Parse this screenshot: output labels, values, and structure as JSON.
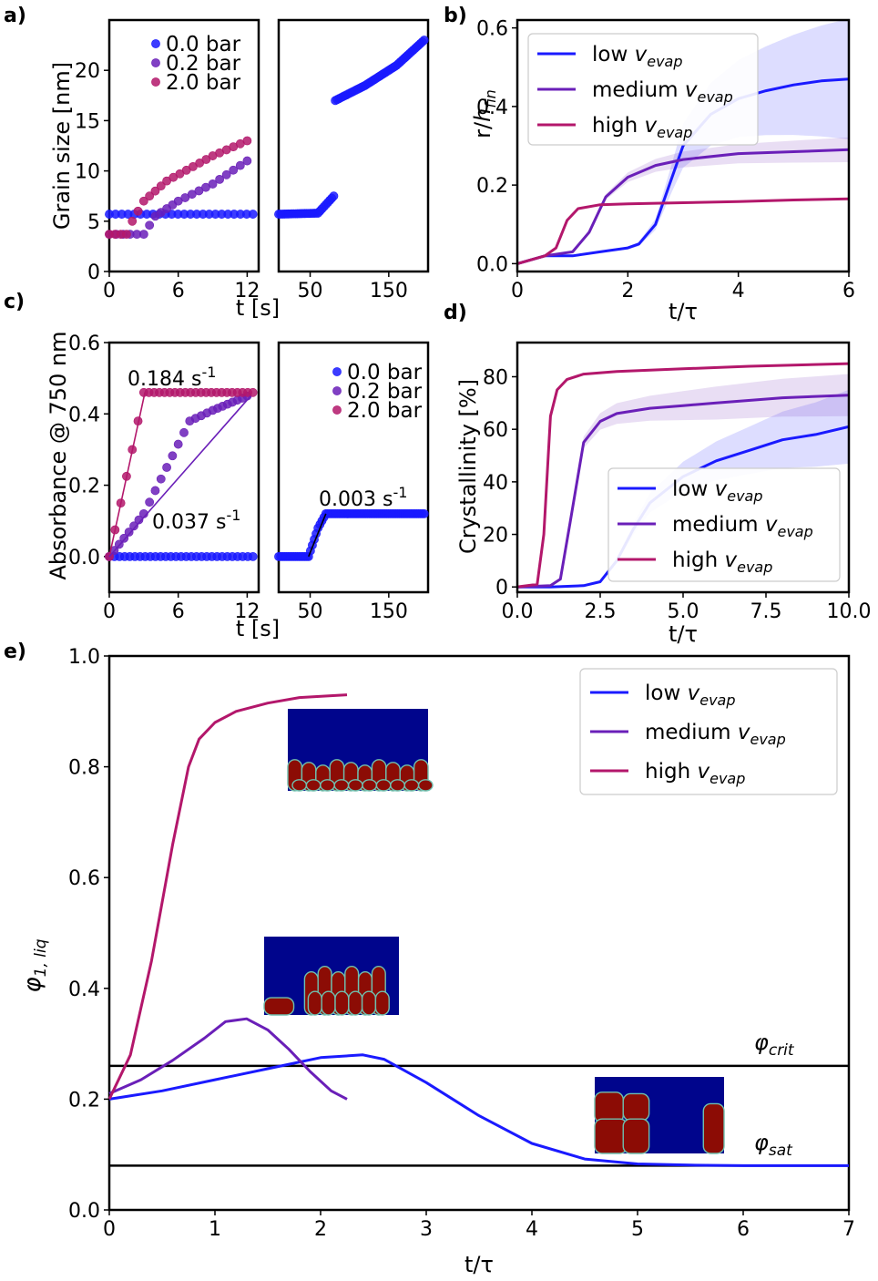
{
  "colors": {
    "low": "#1a1aff",
    "medium": "#6a1fb8",
    "high": "#b3176b",
    "black": "#000000"
  },
  "chart_data": [
    {
      "panel": "a)",
      "type": "scatter",
      "ylabel": "Grain size [nm]",
      "xlabel": "t [s]",
      "ylim": [
        0,
        25
      ],
      "yticks": [
        "0",
        "5",
        "10",
        "15",
        "20"
      ],
      "left_xlim": [
        0,
        13
      ],
      "left_xticks": [
        "0",
        "6",
        "12"
      ],
      "right_xlim": [
        10,
        200
      ],
      "right_xticks": [
        "50",
        "150"
      ],
      "legend": [
        "0.0 bar",
        "0.2 bar",
        "2.0 bar"
      ],
      "series": [
        {
          "name": "0.0 bar",
          "color": "#1a1aff",
          "left": [
            [
              0,
              5.7
            ],
            [
              12.5,
              5.7
            ]
          ],
          "right": [
            [
              10,
              5.7
            ],
            [
              60,
              5.8
            ],
            [
              80,
              7.5
            ],
            [
              82,
              17
            ],
            [
              120,
              18.5
            ],
            [
              160,
              20.5
            ],
            [
              195,
              23
            ]
          ]
        },
        {
          "name": "0.2 bar",
          "color": "#6a1fb8",
          "left": [
            [
              0,
              3.7
            ],
            [
              3,
              3.7
            ],
            [
              4,
              5.5
            ],
            [
              6,
              7
            ],
            [
              9,
              8.7
            ],
            [
              12,
              11
            ]
          ],
          "right": []
        },
        {
          "name": "2.0 bar",
          "color": "#b3176b",
          "left": [
            [
              0,
              3.7
            ],
            [
              1.5,
              3.7
            ],
            [
              2,
              5
            ],
            [
              3,
              7
            ],
            [
              5,
              9
            ],
            [
              9,
              11.5
            ],
            [
              12,
              13
            ]
          ],
          "right": []
        }
      ]
    },
    {
      "panel": "b)",
      "type": "line",
      "ylabel": "r/h_fin",
      "xlabel": "t/τ",
      "xlim": [
        0,
        6
      ],
      "ylim": [
        -0.02,
        0.62
      ],
      "xticks": [
        "0",
        "2",
        "4",
        "6"
      ],
      "yticks": [
        "0.0",
        "0.2",
        "0.4",
        "0.6"
      ],
      "legend": [
        "low",
        "medium",
        "high"
      ],
      "legend_sub": "evap",
      "series": [
        {
          "name": "low",
          "color": "#1a1aff",
          "x": [
            0,
            0.5,
            1,
            1.5,
            2,
            2.2,
            2.5,
            2.8,
            3,
            3.5,
            4,
            4.5,
            5,
            5.5,
            6
          ],
          "y": [
            0,
            0.02,
            0.02,
            0.03,
            0.04,
            0.05,
            0.1,
            0.22,
            0.3,
            0.38,
            0.42,
            0.44,
            0.455,
            0.465,
            0.47
          ]
        },
        {
          "name": "medium",
          "color": "#6a1fb8",
          "x": [
            0,
            0.5,
            1,
            1.3,
            1.6,
            2,
            2.5,
            3,
            4,
            5,
            6
          ],
          "y": [
            0,
            0.02,
            0.03,
            0.08,
            0.17,
            0.22,
            0.25,
            0.265,
            0.28,
            0.285,
            0.29
          ]
        },
        {
          "name": "high",
          "color": "#b3176b",
          "x": [
            0,
            0.5,
            0.7,
            0.9,
            1.1,
            1.5,
            2,
            3,
            4,
            5,
            6
          ],
          "y": [
            0,
            0.02,
            0.04,
            0.11,
            0.14,
            0.15,
            0.152,
            0.155,
            0.158,
            0.162,
            0.165
          ]
        }
      ]
    },
    {
      "panel": "c)",
      "type": "scatter",
      "ylabel": "Absorbance @ 750 nm",
      "xlabel": "t [s]",
      "ylim": [
        -0.1,
        0.6
      ],
      "yticks": [
        "0.0",
        "0.2",
        "0.4",
        "0.6"
      ],
      "left_xlim": [
        0,
        13
      ],
      "left_xticks": [
        "0",
        "6",
        "12"
      ],
      "right_xlim": [
        10,
        200
      ],
      "right_xticks": [
        "50",
        "150"
      ],
      "legend": [
        "0.0 bar",
        "0.2 bar",
        "2.0 bar"
      ],
      "annotations": [
        "0.184 s-1",
        "0.037 s-1",
        "0.003 s-1"
      ],
      "series": [
        {
          "name": "0.0 bar",
          "color": "#1a1aff",
          "left": [
            [
              0,
              0
            ],
            [
              12.5,
              0
            ]
          ],
          "right": [
            [
              10,
              0
            ],
            [
              48,
              0
            ],
            [
              60,
              0.08
            ],
            [
              70,
              0.12
            ],
            [
              195,
              0.12
            ]
          ]
        },
        {
          "name": "0.2 bar",
          "color": "#6a1fb8",
          "left": [
            [
              0,
              0
            ],
            [
              3,
              0.12
            ],
            [
              5,
              0.25
            ],
            [
              7,
              0.38
            ],
            [
              9,
              0.41
            ],
            [
              12,
              0.45
            ]
          ],
          "right": []
        },
        {
          "name": "2.0 bar",
          "color": "#b3176b",
          "left": [
            [
              0,
              0
            ],
            [
              1,
              0.15
            ],
            [
              2,
              0.3
            ],
            [
              3,
              0.46
            ],
            [
              12.5,
              0.46
            ]
          ],
          "right": []
        }
      ]
    },
    {
      "panel": "d)",
      "type": "line",
      "ylabel": "Crystallinity [%]",
      "xlabel": "t/τ",
      "xlim": [
        0,
        10
      ],
      "ylim": [
        -2,
        93
      ],
      "xticks": [
        "0.0",
        "2.5",
        "5.0",
        "7.5",
        "10.0"
      ],
      "yticks": [
        "0",
        "20",
        "40",
        "60",
        "80"
      ],
      "legend": [
        "low",
        "medium",
        "high"
      ],
      "legend_sub": "evap",
      "series": [
        {
          "name": "low",
          "color": "#1a1aff",
          "x": [
            0,
            1,
            2,
            2.5,
            3,
            3.5,
            4,
            5,
            6,
            7,
            8,
            9,
            10
          ],
          "y": [
            0,
            0,
            0.5,
            2,
            10,
            22,
            32,
            42,
            48,
            52,
            56,
            58,
            61
          ]
        },
        {
          "name": "medium",
          "color": "#6a1fb8",
          "x": [
            0,
            1,
            1.3,
            1.6,
            2,
            2.5,
            3,
            4,
            5,
            6,
            8,
            10
          ],
          "y": [
            0,
            0.5,
            3,
            25,
            55,
            63,
            66,
            68,
            69,
            70,
            72,
            73
          ]
        },
        {
          "name": "high",
          "color": "#b3176b",
          "x": [
            0,
            0.6,
            0.8,
            1,
            1.2,
            1.5,
            2,
            3,
            5,
            7,
            10
          ],
          "y": [
            0,
            1,
            20,
            65,
            75,
            79,
            81,
            82,
            83,
            84,
            85
          ]
        }
      ]
    },
    {
      "panel": "e)",
      "type": "line",
      "ylabel": "φ1, liq",
      "xlabel": "t/τ",
      "xlim": [
        0,
        7
      ],
      "ylim": [
        0,
        1
      ],
      "xticks": [
        "0",
        "1",
        "2",
        "3",
        "4",
        "5",
        "6",
        "7"
      ],
      "yticks": [
        "0.0",
        "0.2",
        "0.4",
        "0.6",
        "0.8",
        "1.0"
      ],
      "legend": [
        "low",
        "medium",
        "high"
      ],
      "legend_sub": "evap",
      "hlines": [
        {
          "label": "φcrit",
          "y": 0.26
        },
        {
          "label": "φsat",
          "y": 0.08
        }
      ],
      "series": [
        {
          "name": "low",
          "color": "#1a1aff",
          "x": [
            0,
            0.5,
            1,
            1.5,
            2,
            2.4,
            2.6,
            3,
            3.5,
            4,
            4.5,
            5,
            5.5,
            6,
            7
          ],
          "y": [
            0.2,
            0.215,
            0.235,
            0.255,
            0.275,
            0.28,
            0.272,
            0.23,
            0.17,
            0.12,
            0.092,
            0.083,
            0.081,
            0.08,
            0.08
          ]
        },
        {
          "name": "medium",
          "color": "#6a1fb8",
          "x": [
            0,
            0.3,
            0.6,
            0.9,
            1.1,
            1.3,
            1.5,
            1.7,
            1.9,
            2.1,
            2.25
          ],
          "y": [
            0.21,
            0.235,
            0.27,
            0.31,
            0.34,
            0.345,
            0.325,
            0.29,
            0.25,
            0.215,
            0.2
          ]
        },
        {
          "name": "high",
          "color": "#b3176b",
          "x": [
            0,
            0.2,
            0.4,
            0.6,
            0.75,
            0.85,
            1,
            1.2,
            1.5,
            1.8,
            2.25
          ],
          "y": [
            0.2,
            0.28,
            0.45,
            0.66,
            0.8,
            0.85,
            0.88,
            0.9,
            0.915,
            0.925,
            0.93
          ]
        }
      ]
    }
  ]
}
